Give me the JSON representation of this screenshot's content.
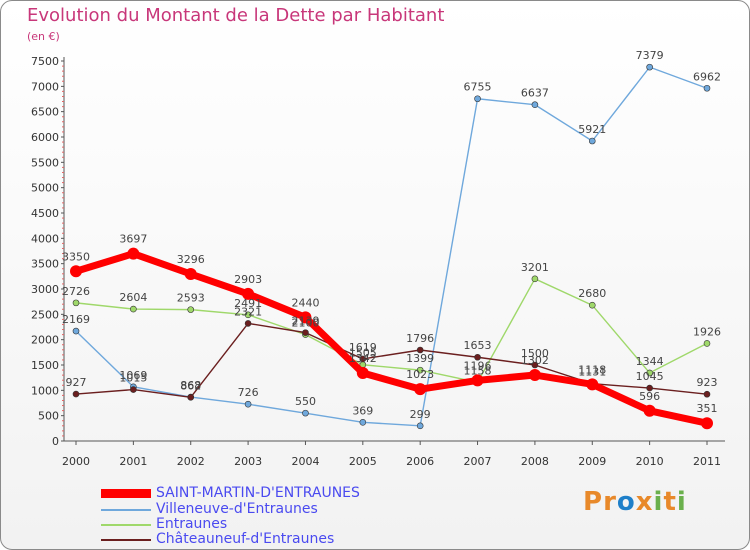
{
  "title": "Evolution du Montant de la Dette par Habitant",
  "unit": "(en €)",
  "logo": {
    "text": "Proxiti",
    "colors": [
      "#e8892a",
      "#e8892a",
      "#1e7fc9",
      "#e8892a",
      "#6ab04c",
      "#e8892a",
      "#6ab04c"
    ]
  },
  "chart_data": {
    "type": "line",
    "x": [
      "2000",
      "2001",
      "2002",
      "2003",
      "2004",
      "2005",
      "2006",
      "2007",
      "2008",
      "2009",
      "2010",
      "2011"
    ],
    "ylim": [
      0,
      7500
    ],
    "yticks": [
      0,
      500,
      1000,
      1500,
      2000,
      2500,
      3000,
      3500,
      4000,
      4500,
      5000,
      5500,
      6000,
      6500,
      7000,
      7500
    ],
    "grid": false,
    "legend_position": "bottom-left",
    "series": [
      {
        "name": "SAINT-MARTIN-D'ENTRAUNES",
        "color": "#ff0000",
        "values": [
          3350,
          3697,
          3296,
          2903,
          2440,
          1342,
          1023,
          1196,
          1302,
          1118,
          596,
          351
        ]
      },
      {
        "name": "Villeneuve-d'Entraunes",
        "color": "#6fa8dc",
        "values": [
          2169,
          1069,
          868,
          726,
          550,
          369,
          299,
          6755,
          6637,
          5921,
          7379,
          6962
        ]
      },
      {
        "name": "Entraunes",
        "color": "#9fd86a",
        "values": [
          2726,
          2604,
          2593,
          2491,
          2100,
          1505,
          1399,
          1158,
          3201,
          2680,
          1344,
          1926
        ]
      },
      {
        "name": "Châteauneuf-d'Entraunes",
        "color": "#6b1f1f",
        "values": [
          927,
          1015,
          862,
          2321,
          2139,
          1619,
          1796,
          1653,
          1500,
          1131,
          1045,
          923
        ]
      }
    ]
  }
}
